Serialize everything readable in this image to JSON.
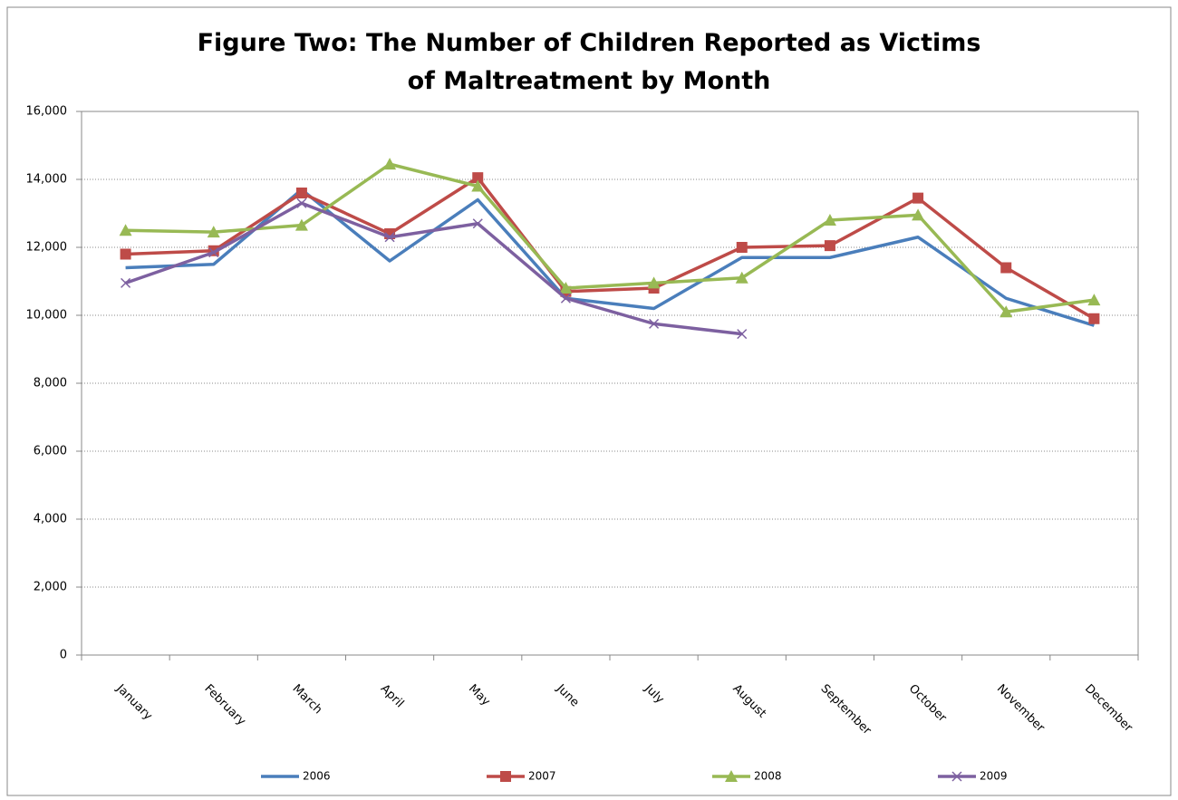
{
  "chart_data": {
    "type": "line",
    "title": "Figure Two: The Number of Children Reported as Victims of Maltreatment by Month",
    "categories": [
      "January",
      "February",
      "March",
      "April",
      "May",
      "June",
      "July",
      "August",
      "September",
      "October",
      "November",
      "December"
    ],
    "series": [
      {
        "name": "2006",
        "color": "#4a7ebb",
        "marker": "none",
        "values": [
          11400,
          11500,
          13700,
          11600,
          13400,
          10500,
          10200,
          11700,
          11700,
          12300,
          10500,
          9700
        ]
      },
      {
        "name": "2007",
        "color": "#be4b48",
        "marker": "square",
        "values": [
          11800,
          11900,
          13600,
          12400,
          14050,
          10700,
          10800,
          12000,
          12050,
          13450,
          11400,
          9900
        ]
      },
      {
        "name": "2008",
        "color": "#98b954",
        "marker": "triangle",
        "values": [
          12500,
          12450,
          12650,
          14450,
          13800,
          10800,
          10950,
          11100,
          12800,
          12950,
          10100,
          10450
        ]
      },
      {
        "name": "2009",
        "color": "#7d60a0",
        "marker": "x",
        "values": [
          10950,
          11850,
          13300,
          12300,
          12700,
          10500,
          9750,
          9450,
          null,
          null,
          null,
          null
        ]
      }
    ],
    "ylim": [
      0,
      16000
    ],
    "yticks": [
      0,
      {
        "value": 2000,
        "label": "2,000"
      },
      {
        "value": 4000,
        "label": "4,000"
      },
      {
        "value": 6000,
        "label": "6,000"
      },
      {
        "value": 8000,
        "label": "8,000"
      },
      {
        "value": 10000,
        "label": "10,000"
      },
      {
        "value": 12000,
        "label": "12,000"
      },
      {
        "value": 14000,
        "label": "14,000"
      },
      {
        "value": 16000,
        "label": "16,000"
      }
    ],
    "grid": true,
    "legend": "bottom"
  }
}
